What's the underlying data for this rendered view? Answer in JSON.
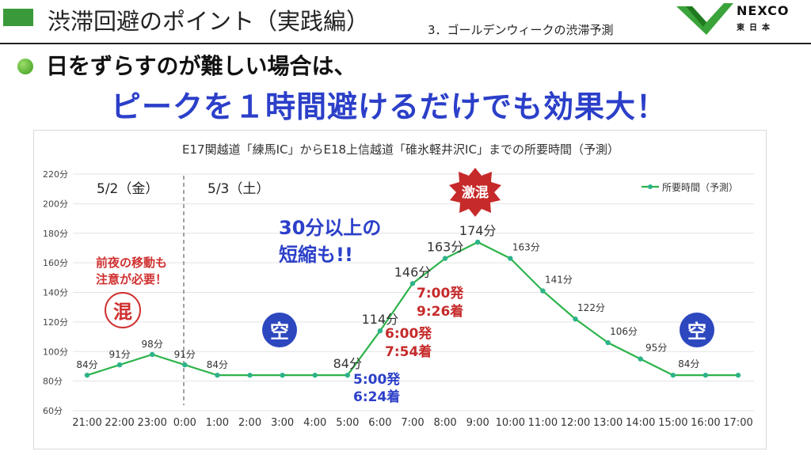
{
  "header": {
    "title": "渋滞回避のポイント（実践編）",
    "section": "3．ゴールデンウィークの渋滞予測",
    "logo_word": "NEXCO",
    "logo_sub": "東日本"
  },
  "intro": {
    "lead": "日をずらすのが難しい場合は、",
    "headline": "ピークを１時間避けるだけでも効果大！"
  },
  "chart_data": {
    "type": "line",
    "title": "E17関越道「練馬IC」からE18上信越道「碓氷軽井沢IC」までの所要時間（予測）",
    "categories": [
      "21:00",
      "22:00",
      "23:00",
      "0:00",
      "1:00",
      "2:00",
      "3:00",
      "4:00",
      "5:00",
      "6:00",
      "7:00",
      "8:00",
      "9:00",
      "10:00",
      "11:00",
      "12:00",
      "13:00",
      "14:00",
      "15:00",
      "16:00",
      "17:00"
    ],
    "series": [
      {
        "name": "所要時間（予測）",
        "values": [
          84,
          91,
          98,
          91,
          84,
          84,
          84,
          84,
          84,
          114,
          146,
          163,
          174,
          163,
          141,
          122,
          106,
          95,
          84,
          84,
          84
        ]
      }
    ],
    "data_labels": [
      "84分",
      "91分",
      "98分",
      "91分",
      "84分",
      null,
      null,
      null,
      "84分",
      "114分",
      "146分",
      "163分",
      "174分",
      "163分",
      "141分",
      "122分",
      "106分",
      "95分",
      "84分",
      null,
      null
    ],
    "y_ticks": [
      "60分",
      "80分",
      "100分",
      "120分",
      "140分",
      "160分",
      "180分",
      "200分",
      "220分"
    ],
    "ylim": [
      60,
      220
    ],
    "grid": true,
    "legend": "top-right",
    "colors": {
      "line": "#2db34a",
      "marker": "#2db38a"
    }
  },
  "annotations": {
    "day1": "5/2（金）",
    "day2": "5/3（土）",
    "night_note_line1": "前夜の移動も",
    "night_note_line2": "注意が必要！",
    "busy_badge": "混",
    "empty_badge": "空",
    "peak_badge": "激混",
    "saving_line1": "30分以上の",
    "saving_line2": "短縮も!!",
    "dep5": "5:00発",
    "arr5": "6:24着",
    "dep6": "6:00発",
    "arr6": "7:54着",
    "dep7": "7:00発",
    "arr7": "9:26着"
  }
}
